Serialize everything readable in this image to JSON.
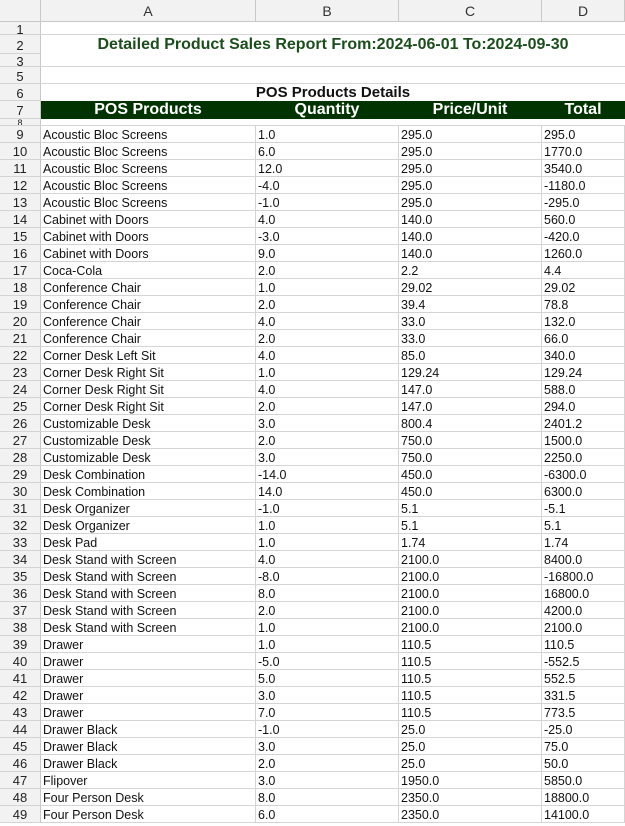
{
  "columns": [
    "A",
    "B",
    "C",
    "D"
  ],
  "report_title": "Detailed Product Sales Report From:2024-06-01    To:2024-09-30",
  "section_title": "POS Products Details",
  "table_headers": [
    "POS Products",
    "Quantity",
    "Price/Unit",
    "Total"
  ],
  "rows": [
    {
      "n": "9",
      "p": "Acoustic Bloc Screens",
      "q": "1.0",
      "u": "295.0",
      "t": "295.0"
    },
    {
      "n": "10",
      "p": "Acoustic Bloc Screens",
      "q": "6.0",
      "u": "295.0",
      "t": "1770.0"
    },
    {
      "n": "11",
      "p": "Acoustic Bloc Screens",
      "q": "12.0",
      "u": "295.0",
      "t": "3540.0"
    },
    {
      "n": "12",
      "p": "Acoustic Bloc Screens",
      "q": "-4.0",
      "u": "295.0",
      "t": "-1180.0"
    },
    {
      "n": "13",
      "p": "Acoustic Bloc Screens",
      "q": "-1.0",
      "u": "295.0",
      "t": "-295.0"
    },
    {
      "n": "14",
      "p": "Cabinet with Doors",
      "q": "4.0",
      "u": "140.0",
      "t": "560.0"
    },
    {
      "n": "15",
      "p": "Cabinet with Doors",
      "q": "-3.0",
      "u": "140.0",
      "t": "-420.0"
    },
    {
      "n": "16",
      "p": "Cabinet with Doors",
      "q": "9.0",
      "u": "140.0",
      "t": "1260.0"
    },
    {
      "n": "17",
      "p": "Coca-Cola",
      "q": "2.0",
      "u": "2.2",
      "t": "4.4"
    },
    {
      "n": "18",
      "p": "Conference Chair",
      "q": "1.0",
      "u": "29.02",
      "t": "29.02"
    },
    {
      "n": "19",
      "p": "Conference Chair",
      "q": "2.0",
      "u": "39.4",
      "t": "78.8"
    },
    {
      "n": "20",
      "p": "Conference Chair",
      "q": "4.0",
      "u": "33.0",
      "t": "132.0"
    },
    {
      "n": "21",
      "p": "Conference Chair",
      "q": "2.0",
      "u": "33.0",
      "t": "66.0"
    },
    {
      "n": "22",
      "p": "Corner Desk Left Sit",
      "q": "4.0",
      "u": "85.0",
      "t": "340.0"
    },
    {
      "n": "23",
      "p": "Corner Desk Right Sit",
      "q": "1.0",
      "u": "129.24",
      "t": "129.24"
    },
    {
      "n": "24",
      "p": "Corner Desk Right Sit",
      "q": "4.0",
      "u": "147.0",
      "t": "588.0"
    },
    {
      "n": "25",
      "p": "Corner Desk Right Sit",
      "q": "2.0",
      "u": "147.0",
      "t": "294.0"
    },
    {
      "n": "26",
      "p": "Customizable Desk",
      "q": "3.0",
      "u": "800.4",
      "t": "2401.2"
    },
    {
      "n": "27",
      "p": "Customizable Desk",
      "q": "2.0",
      "u": "750.0",
      "t": "1500.0"
    },
    {
      "n": "28",
      "p": "Customizable Desk",
      "q": "3.0",
      "u": "750.0",
      "t": "2250.0"
    },
    {
      "n": "29",
      "p": "Desk Combination",
      "q": "-14.0",
      "u": "450.0",
      "t": "-6300.0"
    },
    {
      "n": "30",
      "p": "Desk Combination",
      "q": "14.0",
      "u": "450.0",
      "t": "6300.0"
    },
    {
      "n": "31",
      "p": "Desk Organizer",
      "q": "-1.0",
      "u": "5.1",
      "t": "-5.1"
    },
    {
      "n": "32",
      "p": "Desk Organizer",
      "q": "1.0",
      "u": "5.1",
      "t": "5.1"
    },
    {
      "n": "33",
      "p": "Desk Pad",
      "q": "1.0",
      "u": "1.74",
      "t": "1.74"
    },
    {
      "n": "34",
      "p": "Desk Stand with Screen",
      "q": "4.0",
      "u": "2100.0",
      "t": "8400.0"
    },
    {
      "n": "35",
      "p": "Desk Stand with Screen",
      "q": "-8.0",
      "u": "2100.0",
      "t": "-16800.0"
    },
    {
      "n": "36",
      "p": "Desk Stand with Screen",
      "q": "8.0",
      "u": "2100.0",
      "t": "16800.0"
    },
    {
      "n": "37",
      "p": "Desk Stand with Screen",
      "q": "2.0",
      "u": "2100.0",
      "t": "4200.0"
    },
    {
      "n": "38",
      "p": "Desk Stand with Screen",
      "q": "1.0",
      "u": "2100.0",
      "t": "2100.0"
    },
    {
      "n": "39",
      "p": "Drawer",
      "q": "1.0",
      "u": "110.5",
      "t": "110.5"
    },
    {
      "n": "40",
      "p": "Drawer",
      "q": "-5.0",
      "u": "110.5",
      "t": "-552.5"
    },
    {
      "n": "41",
      "p": "Drawer",
      "q": "5.0",
      "u": "110.5",
      "t": "552.5"
    },
    {
      "n": "42",
      "p": "Drawer",
      "q": "3.0",
      "u": "110.5",
      "t": "331.5"
    },
    {
      "n": "43",
      "p": "Drawer",
      "q": "7.0",
      "u": "110.5",
      "t": "773.5"
    },
    {
      "n": "44",
      "p": "Drawer Black",
      "q": "-1.0",
      "u": "25.0",
      "t": "-25.0"
    },
    {
      "n": "45",
      "p": "Drawer Black",
      "q": "3.0",
      "u": "25.0",
      "t": "75.0"
    },
    {
      "n": "46",
      "p": "Drawer Black",
      "q": "2.0",
      "u": "25.0",
      "t": "50.0"
    },
    {
      "n": "47",
      "p": "Flipover",
      "q": "3.0",
      "u": "1950.0",
      "t": "5850.0"
    },
    {
      "n": "48",
      "p": "Four Person Desk",
      "q": "8.0",
      "u": "2350.0",
      "t": "18800.0"
    },
    {
      "n": "49",
      "p": "Four Person Desk",
      "q": "6.0",
      "u": "2350.0",
      "t": "14100.0"
    }
  ],
  "upper_row_numbers": [
    "1",
    "2",
    "3",
    "5",
    "6",
    "7",
    "8"
  ],
  "colors": {
    "header_bg": "#003300",
    "title_text": "#1d4d1d",
    "grid_line": "#d4d4d4"
  }
}
